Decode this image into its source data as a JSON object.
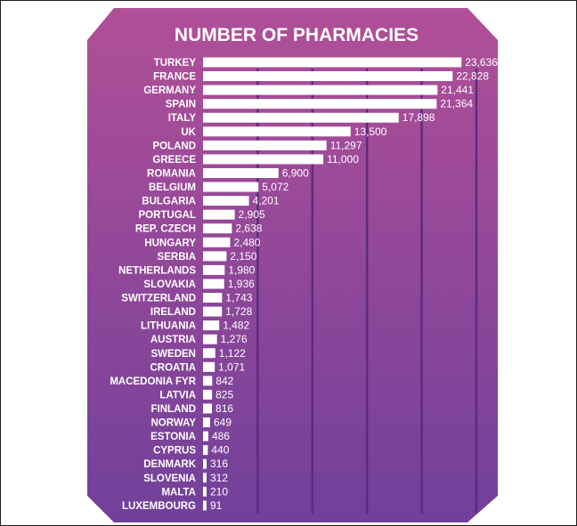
{
  "chart_data": {
    "type": "bar",
    "orientation": "horizontal",
    "title": "NUMBER OF PHARMACIES",
    "categories": [
      "TURKEY",
      "FRANCE",
      "GERMANY",
      "SPAIN",
      "ITALY",
      "UK",
      "POLAND",
      "GREECE",
      "ROMANIA",
      "BELGIUM",
      "BULGARIA",
      "PORTUGAL",
      "REP. CZECH",
      "HUNGARY",
      "SERBIA",
      "NETHERLANDS",
      "SLOVAKIA",
      "SWITZERLAND",
      "IRELAND",
      "LITHUANIA",
      "AUSTRIA",
      "SWEDEN",
      "CROATIA",
      "MACEDONIA FYR",
      "LATVIA",
      "FINLAND",
      "NORWAY",
      "ESTONIA",
      "CYPRUS",
      "DENMARK",
      "SLOVENIA",
      "MALTA",
      "LUXEMBOURG"
    ],
    "values": [
      23636,
      22828,
      21441,
      21364,
      17898,
      13500,
      11297,
      11000,
      6900,
      5072,
      4201,
      2905,
      2638,
      2480,
      2150,
      1980,
      1936,
      1743,
      1728,
      1482,
      1276,
      1122,
      1071,
      842,
      825,
      816,
      649,
      486,
      440,
      316,
      312,
      210,
      91
    ],
    "value_labels": [
      "23,636",
      "22,828",
      "21,441",
      "21,364",
      "17,898",
      "13,500",
      "11,297",
      "11,000",
      "6,900",
      "5,072",
      "4,201",
      "2,905",
      "2,638",
      "2,480",
      "2,150",
      "1,980",
      "1,936",
      "1,743",
      "1,728",
      "1,482",
      "1,276",
      "1,122",
      "1,071",
      "842",
      "825",
      "816",
      "649",
      "486",
      "440",
      "316",
      "312",
      "210",
      "91"
    ],
    "xlim": [
      0,
      25000
    ],
    "gridlines": true,
    "legend": "none",
    "colors": {
      "background_start": "#b14f98",
      "background_end": "#71409a",
      "bar": "#ffffff",
      "grid": "#5e2a7e",
      "text": "#ffffff"
    }
  }
}
